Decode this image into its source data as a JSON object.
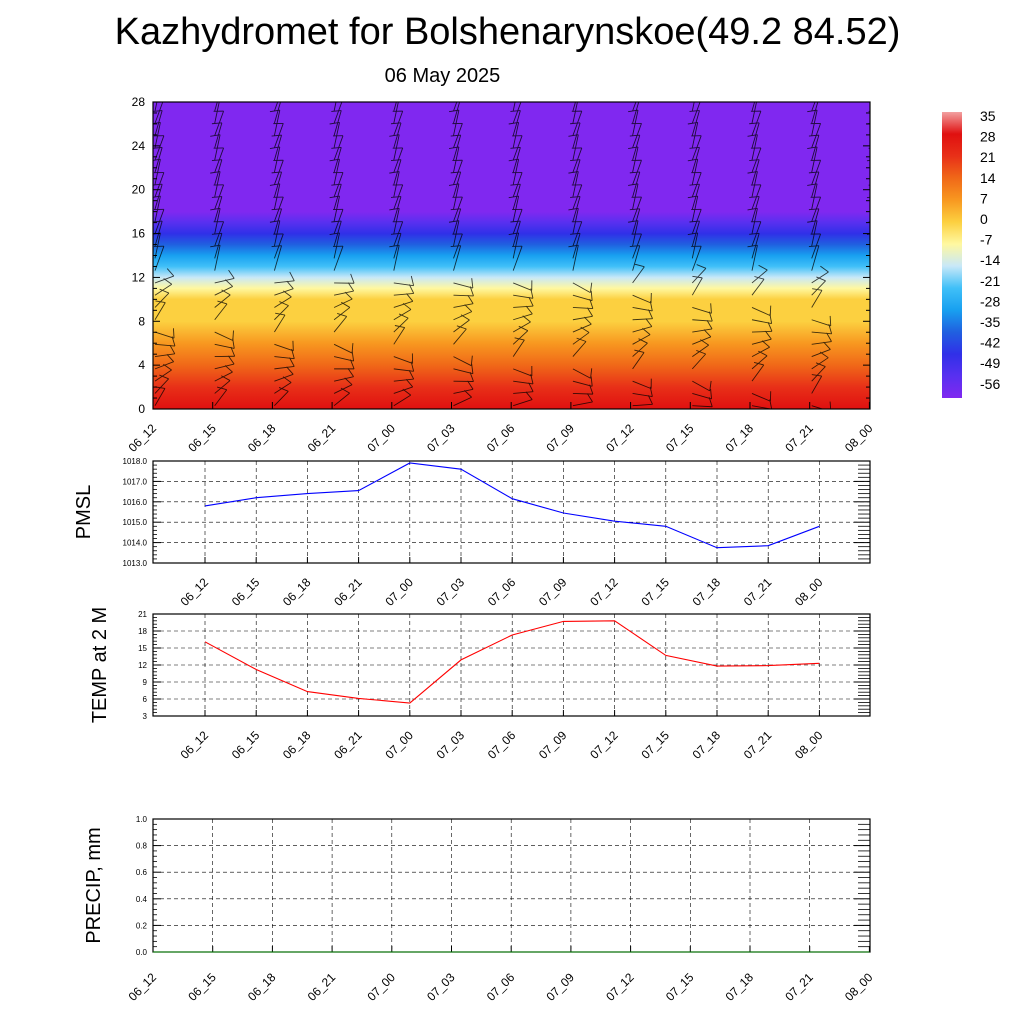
{
  "page": {
    "title": "Kazhydromet for Bolshenarynskoe(49.2 84.52)",
    "subtitle": "06 May 2025"
  },
  "chart_data": [
    {
      "type": "heatmap",
      "title": "",
      "xlabel": "",
      "ylabel": "",
      "x_ticks": [
        "06_12",
        "06_15",
        "06_18",
        "06_21",
        "07_00",
        "07_03",
        "07_06",
        "07_09",
        "07_12",
        "07_15",
        "07_18",
        "07_21",
        "08_00"
      ],
      "y_ticks": [
        0,
        4,
        8,
        12,
        16,
        20,
        24,
        28
      ],
      "ylim": [
        0,
        28
      ],
      "colorbar": {
        "labels": [
          35,
          28,
          21,
          14,
          7,
          0,
          -7,
          -14,
          -21,
          -28,
          -35,
          -42,
          -49,
          -56
        ],
        "colors": [
          "#f2a0a0",
          "#e01010",
          "#e83018",
          "#f06818",
          "#f89820",
          "#fcd040",
          "#fff8a0",
          "#c8e8f8",
          "#40c0f8",
          "#18a0f0",
          "#2060e0",
          "#3030e8",
          "#5830f0",
          "#8028f0"
        ]
      },
      "temperature_profile": {
        "heights": [
          0,
          2,
          4,
          6,
          8,
          10,
          11,
          12,
          13,
          14,
          15,
          16,
          17,
          18,
          19,
          20,
          22,
          24,
          26,
          28
        ],
        "values": [
          30,
          24,
          18,
          12,
          6,
          0,
          -3,
          -10,
          -18,
          -25,
          -32,
          -39,
          -45,
          -50,
          -54,
          -56,
          -58,
          -59,
          -60,
          -61
        ]
      },
      "grid": false,
      "wind_barbs": true
    },
    {
      "type": "line",
      "title": "",
      "ylabel": "PMSL",
      "x_ticks": [
        "06_12",
        "06_15",
        "06_18",
        "06_21",
        "07_00",
        "07_03",
        "07_06",
        "07_09",
        "07_12",
        "07_15",
        "07_18",
        "07_21",
        "08_00"
      ],
      "y_ticks": [
        "1013.0",
        "1014.0",
        "1015.0",
        "1016.0",
        "1017.0",
        "1018.0"
      ],
      "ylim": [
        1013,
        1018
      ],
      "series": [
        {
          "color": "#0000ff",
          "values": [
            1015.8,
            1016.2,
            1016.4,
            1016.55,
            1017.9,
            1017.6,
            1016.15,
            1015.45,
            1015.05,
            1014.8,
            1013.75,
            1013.85,
            1014.8
          ]
        }
      ],
      "grid": true
    },
    {
      "type": "line",
      "title": "",
      "ylabel": "TEMP at 2 M",
      "x_ticks": [
        "06_12",
        "06_15",
        "06_18",
        "06_21",
        "07_00",
        "07_03",
        "07_06",
        "07_09",
        "07_12",
        "07_15",
        "07_18",
        "07_21",
        "08_00"
      ],
      "y_ticks": [
        "3",
        "6",
        "9",
        "12",
        "15",
        "18",
        "21"
      ],
      "ylim": [
        3,
        21
      ],
      "series": [
        {
          "color": "#ff0000",
          "values": [
            16.1,
            11.2,
            7.3,
            6.1,
            5.3,
            12.9,
            17.3,
            19.7,
            19.8,
            13.7,
            11.8,
            11.9,
            12.3
          ]
        }
      ],
      "grid": true
    },
    {
      "type": "line",
      "title": "",
      "ylabel": "PRECIP, mm",
      "x_ticks": [
        "06_12",
        "06_15",
        "06_18",
        "06_21",
        "07_00",
        "07_03",
        "07_06",
        "07_09",
        "07_12",
        "07_15",
        "07_18",
        "07_21",
        "08_00"
      ],
      "y_ticks": [
        "0.0",
        "0.2",
        "0.4",
        "0.6",
        "0.8",
        "1.0"
      ],
      "ylim": [
        0,
        1
      ],
      "series": [
        {
          "color": "#008000",
          "values": [
            0,
            0,
            0,
            0,
            0,
            0,
            0,
            0,
            0,
            0,
            0,
            0,
            0
          ]
        }
      ],
      "grid": true
    }
  ]
}
